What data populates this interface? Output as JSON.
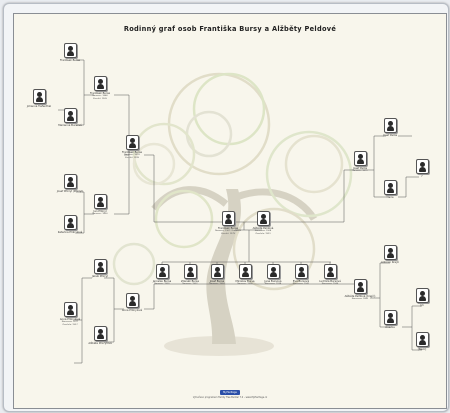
{
  "title": "Rodinný graf osob Františka Bursy a Alžběty Peldové",
  "footer": "Vytvořeno programem Family Tree Builder 7.0 – www.MyHeritage.cz",
  "logo_text": "MyHeritage",
  "people": {
    "fb_main": {
      "name": "František Bursa",
      "details": "Narozen: 1907, Kroměříž\nZemřel: 1979"
    },
    "ap_main": {
      "name": "Alžběta Peldová",
      "details": "Narozena: 1908\nZemřela: 1991"
    },
    "f_bursa": {
      "name": "František Bursa",
      "details": "Narozen: 1874\nZemřel: 1939"
    },
    "a_pf": {
      "name": "Anna Přikrylová",
      "details": "Narozena: 1877\nZemřela: 1957"
    },
    "fr_bursa": {
      "name": "František Bursa",
      "details": "Narozen: 1848\nZemřel: 1905"
    },
    "mar_bursa": {
      "name": "Marianna Bursová",
      "details": ""
    },
    "fr_ggf": {
      "name": "Frantisek Bursa",
      "details": ""
    },
    "johanna": {
      "name": "Johanna Tiefenthal",
      "details": ""
    },
    "jan_pf": {
      "name": "Jan Přikryl",
      "details": "Narozen: 1850"
    },
    "anna_gf": {
      "name": "Anna Přikrylová",
      "details": ""
    },
    "josef_pf": {
      "name": "Josef Přikryl (Přikryl)",
      "details": ""
    },
    "cath": {
      "name": "Kateřina Přikrylová",
      "details": ""
    },
    "pelda_f": {
      "name": "Josef Pelda",
      "details": "Narozen: 1875"
    },
    "pelda_gf": {
      "name": "Josef Pelda",
      "details": ""
    },
    "pelda_gm": {
      "name": "Marie",
      "details": ""
    },
    "pelda_ggf": {
      "name": "?",
      "details": ""
    },
    "pelda_m": {
      "name": "Alžběta Peldová (Krejčí)",
      "details": "Narozena: 1882"
    },
    "krejci_gf": {
      "name": "Antonín Krejčí",
      "details": ""
    },
    "krejci_gm": {
      "name": "Anežka",
      "details": ""
    },
    "krejci_gg1": {
      "name": "Jiří",
      "details": ""
    },
    "krejci_gg2": {
      "name": "[Nezn]",
      "details": ""
    },
    "child1": {
      "name": "Jaroslav Bursa",
      "details": "Narozen: 1930"
    },
    "child2": {
      "name": "Zdeněk Bursa",
      "details": "Narozen: 1932"
    },
    "child3": {
      "name": "Josef Bursa",
      "details": "Narozen: 1934"
    },
    "child4": {
      "name": "Miroslav Bursa",
      "details": "Narozen: 1936"
    },
    "child5": {
      "name": "Jana Bursová",
      "details": "Narozena: 1938"
    },
    "child6": {
      "name": "Eva Bursová",
      "details": "Narozena: 1941"
    },
    "child7": {
      "name": "Ludmila Bursová",
      "details": "Narozena: 1944"
    },
    "lg1": {
      "name": "Jakub Přikryl",
      "details": ""
    },
    "lg2": {
      "name": "Alžběta Přikrylová",
      "details": ""
    }
  }
}
